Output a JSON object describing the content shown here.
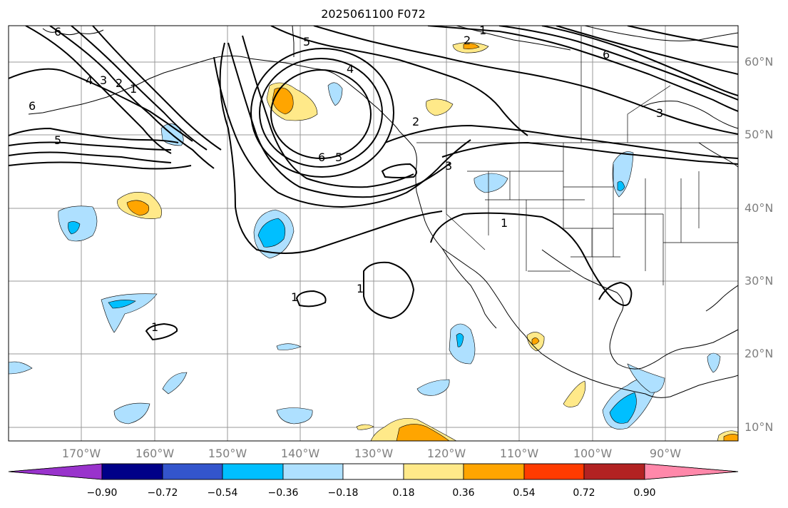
{
  "map": {
    "title": "2025061100 F072",
    "lat_labels": [
      "60°N",
      "50°N",
      "40°N",
      "30°N",
      "20°N",
      "10°N"
    ],
    "lon_labels": [
      "170°W",
      "160°W",
      "150°W",
      "140°W",
      "130°W",
      "120°W",
      "110°W",
      "100°W",
      "90°W"
    ],
    "extent": {
      "lon": [
        -180,
        -80
      ],
      "lat": [
        8,
        65
      ]
    },
    "contour_labels": [
      "6",
      "5",
      "4",
      "3",
      "2",
      "1",
      "4",
      "5",
      "6",
      "6",
      "5",
      "2",
      "2",
      "1",
      "1",
      "3",
      "6",
      "3",
      "1",
      "1",
      "1",
      "4",
      "3",
      "1"
    ]
  },
  "colorbar": {
    "tick_labels": [
      "−0.90",
      "−0.72",
      "−0.54",
      "−0.36",
      "−0.18",
      "0.18",
      "0.36",
      "0.54",
      "0.72",
      "0.90"
    ],
    "colors": [
      "#9933cc",
      "#000088",
      "#3355cc",
      "#00bfff",
      "#aee0ff",
      "#ffffff",
      "#ffe989",
      "#ffa500",
      "#ff3b00",
      "#b22222",
      "#ff88aa"
    ]
  }
}
